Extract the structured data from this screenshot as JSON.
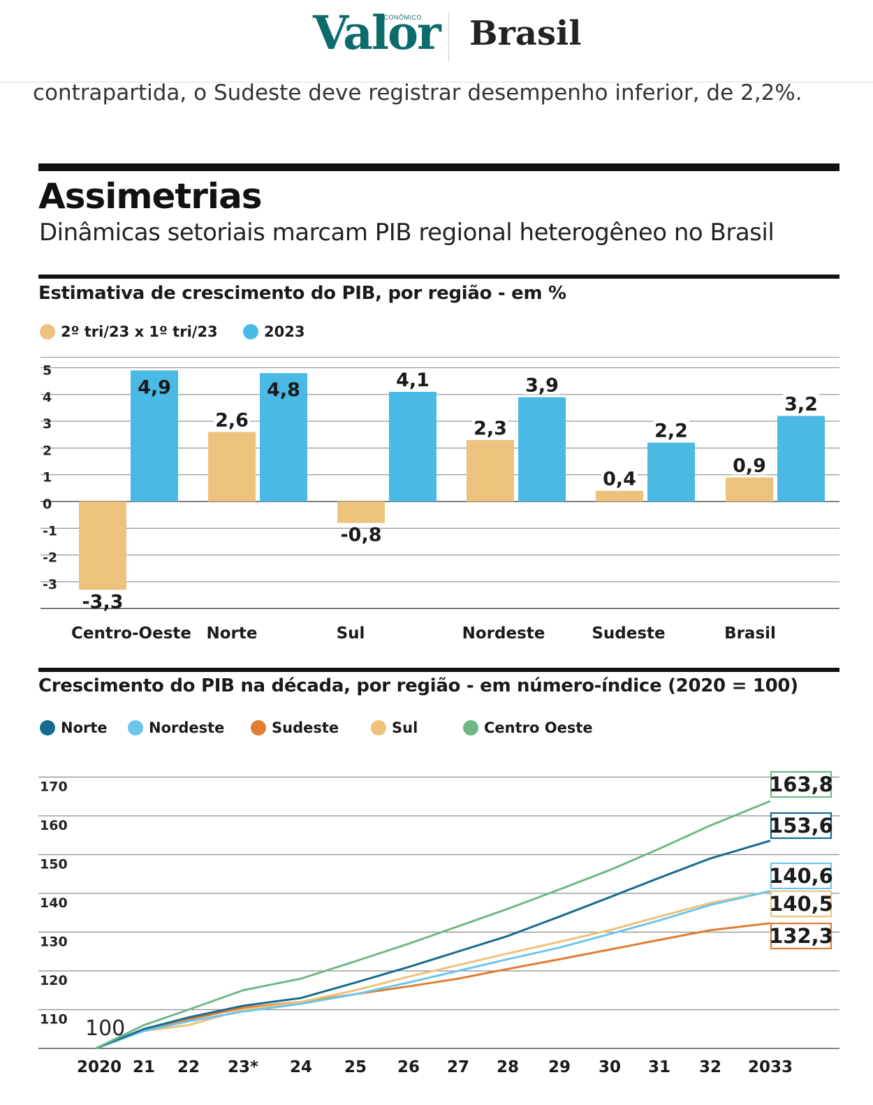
{
  "header": {
    "logo": "Valor",
    "logo_small": "ECONÔMICO",
    "section": "Brasil"
  },
  "intro_text": "contrapartida, o Sudeste deve registrar desempenho inferior, de 2,2%.",
  "infographic": {
    "title": "Assimetrias",
    "subtitle": "Dinâmicas setoriais marcam PIB regional heterogêneo no Brasil"
  },
  "colors": {
    "tan": "#ecc27d",
    "blue": "#4ab9e4",
    "norte_line": "#176b8e",
    "nordeste_line": "#6cc6ec",
    "sudeste_line": "#e07d33",
    "sul_line": "#eec279",
    "centro_line": "#6fb886"
  },
  "chart_data": [
    {
      "type": "bar",
      "title": "Estimativa de crescimento do PIB, por região - em %",
      "categories": [
        "Centro-Oeste",
        "Norte",
        "Sul",
        "Nordeste",
        "Sudeste",
        "Brasil"
      ],
      "series": [
        {
          "name": "2º tri/23 x 1º tri/23",
          "values": [
            -3.3,
            2.6,
            -0.8,
            2.3,
            0.4,
            0.9
          ]
        },
        {
          "name": "2023",
          "values": [
            4.9,
            4.8,
            4.1,
            3.9,
            2.2,
            3.2
          ]
        }
      ],
      "value_labels": [
        [
          "-3,3",
          "2,6",
          "-0,8",
          "2,3",
          "0,4",
          "0,9"
        ],
        [
          "4,9",
          "4,8",
          "4,1",
          "3,9",
          "2,2",
          "3,2"
        ]
      ],
      "yticks": [
        "5",
        "4",
        "3",
        "2",
        "1",
        "0",
        "-1",
        "-2",
        "-3"
      ],
      "ylim": [
        -4,
        5
      ],
      "legend": "top-left",
      "grid": true
    },
    {
      "type": "line",
      "title": "Crescimento do PIB na década, por região - em número-índice (2020 = 100)",
      "x": [
        "2020",
        "21",
        "22",
        "23*",
        "24",
        "25",
        "26",
        "27",
        "28",
        "29",
        "30",
        "31",
        "32",
        "2033"
      ],
      "series": [
        {
          "name": "Norte",
          "values": [
            100,
            105,
            108,
            111,
            113,
            117,
            121,
            125,
            129,
            134,
            139,
            144,
            149,
            153.6
          ],
          "end_label": "153,6"
        },
        {
          "name": "Nordeste",
          "values": [
            100,
            104.5,
            107,
            109.5,
            111.5,
            114,
            117,
            120,
            123,
            126,
            129.5,
            133,
            137,
            140.6
          ],
          "end_label": "140,6"
        },
        {
          "name": "Sudeste",
          "values": [
            100,
            104.5,
            107.5,
            110.5,
            112,
            114,
            116,
            118,
            120.5,
            123,
            125.5,
            128,
            130.5,
            132.3
          ],
          "end_label": "132,3"
        },
        {
          "name": "Sul",
          "values": [
            100,
            104.5,
            106,
            110,
            112,
            115,
            118.5,
            121.5,
            124.5,
            127.5,
            130.5,
            134,
            137.5,
            140.5
          ],
          "end_label": "140,5"
        },
        {
          "name": "Centro Oeste",
          "values": [
            100,
            106,
            110,
            115,
            118,
            122.5,
            127,
            131.5,
            136,
            141,
            146,
            151.5,
            157.5,
            163.8
          ],
          "end_label": "163,8"
        }
      ],
      "first_label": "100",
      "yticks": [
        "170",
        "160",
        "150",
        "140",
        "130",
        "120",
        "110"
      ],
      "ylim": [
        100,
        172
      ],
      "legend": "top-left",
      "grid": true
    }
  ]
}
